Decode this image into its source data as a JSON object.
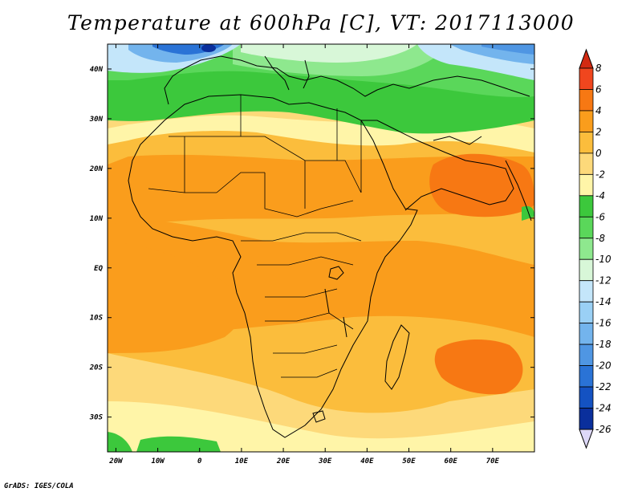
{
  "title": "Temperature at 600hPa [C], VT: 2017113000",
  "credit": "GrADS: IGES/COLA",
  "map": {
    "lon_range": [
      -22,
      80
    ],
    "lat_range": [
      -37,
      45
    ],
    "x_ticks": [
      "20W",
      "10W",
      "0",
      "10E",
      "20E",
      "30E",
      "40E",
      "50E",
      "60E",
      "70E"
    ],
    "x_tick_values": [
      -20,
      -10,
      0,
      10,
      20,
      30,
      40,
      50,
      60,
      70
    ],
    "y_ticks": [
      "40N",
      "30N",
      "20N",
      "10N",
      "EQ",
      "10S",
      "20S",
      "30S"
    ],
    "y_tick_values": [
      40,
      30,
      20,
      10,
      0,
      -10,
      -20,
      -30
    ]
  },
  "colorbar": {
    "levels": [
      "8",
      "6",
      "4",
      "2",
      "0",
      "-2",
      "-4",
      "-6",
      "-8",
      "-10",
      "-12",
      "-14",
      "-16",
      "-18",
      "-20",
      "-22",
      "-24",
      "-26"
    ],
    "colors": [
      "#f0461e",
      "#f77813",
      "#fa9d1c",
      "#fbbd3c",
      "#fdd97a",
      "#fff5a8",
      "#3cc83c",
      "#5ad75a",
      "#8ee88e",
      "#d8f7d8",
      "#c4e6fa",
      "#9ad0f5",
      "#73b4ed",
      "#4f96e3",
      "#2a73d6",
      "#1452c2",
      "#0a2f9c",
      "#ddddfa"
    ],
    "top_arrow_color": "#d22a12",
    "bottom_arrow_color": "#ddd8f8"
  }
}
